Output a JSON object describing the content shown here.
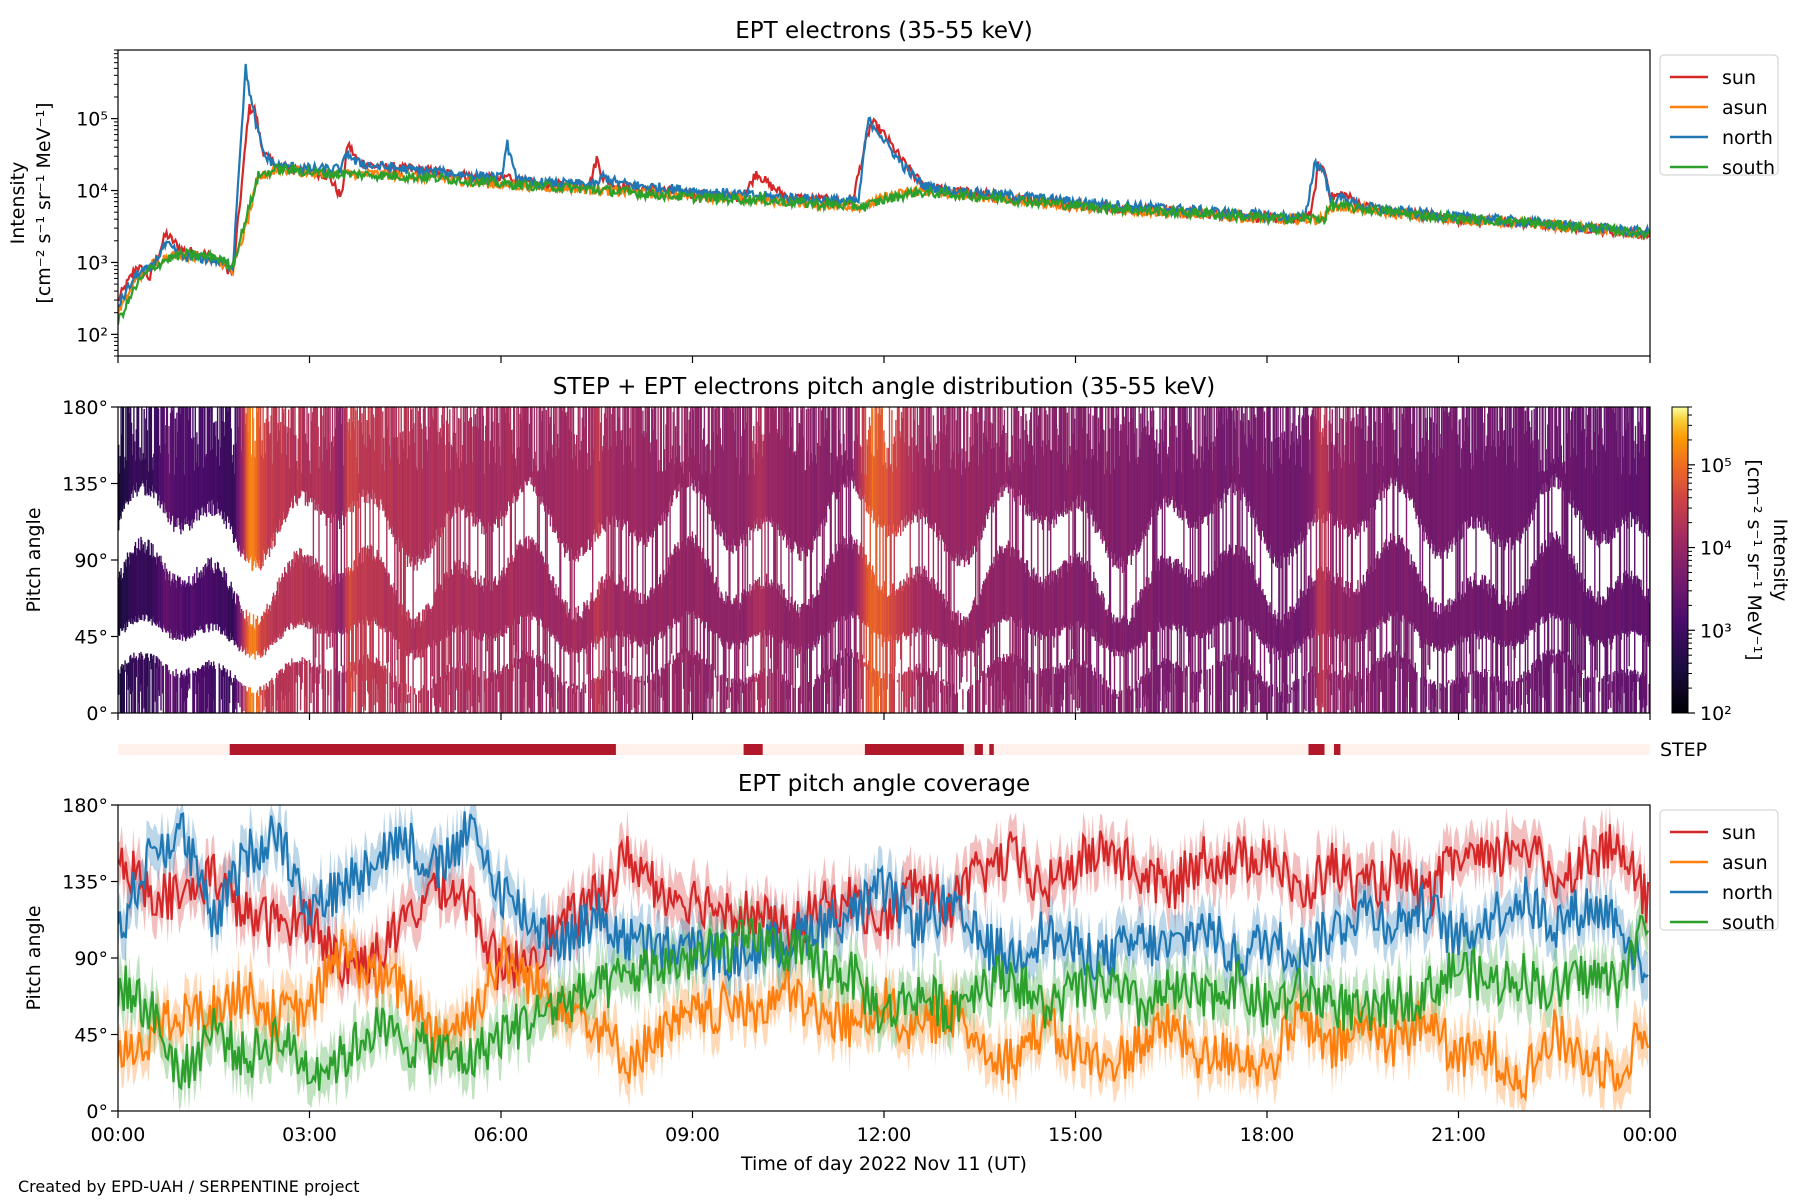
{
  "footer": "Created by EPD-UAH / SERPENTINE project",
  "chart_data": [
    {
      "type": "line",
      "title": "EPT electrons (35-55 keV)",
      "ylabel_line1": "Intensity",
      "ylabel_line2": "[cm⁻² s⁻¹ sr⁻¹ MeV⁻¹]",
      "yscale": "log",
      "ylim": [
        50,
        900000
      ],
      "yticks": [
        {
          "v": 100,
          "label": "10²"
        },
        {
          "v": 1000,
          "label": "10³"
        },
        {
          "v": 10000,
          "label": "10⁴"
        },
        {
          "v": 100000,
          "label": "10⁵"
        }
      ],
      "xlim": [
        0,
        24
      ],
      "legend_position": "right",
      "series": [
        {
          "name": "sun",
          "color": "#d62728",
          "x": [
            0,
            0.3,
            0.5,
            0.75,
            1.0,
            1.5,
            1.8,
            1.95,
            2.05,
            2.15,
            2.25,
            2.35,
            2.5,
            2.7,
            3.0,
            3.3,
            3.5,
            3.6,
            3.75,
            4.0,
            5.0,
            6.0,
            6.1,
            6.3,
            6.6,
            7.0,
            7.4,
            7.5,
            7.6,
            7.8,
            8.0,
            9.0,
            9.8,
            10.0,
            10.2,
            10.5,
            11.0,
            11.5,
            11.7,
            11.8,
            11.9,
            12.0,
            12.3,
            12.6,
            13.0,
            14.0,
            15.0,
            16.0,
            17.0,
            18.0,
            18.5,
            18.7,
            18.8,
            18.9,
            19.0,
            19.2,
            19.5,
            20.0,
            21.0,
            22.0,
            23.0,
            24.0
          ],
          "y": [
            300,
            900,
            600,
            2500,
            1500,
            1200,
            700,
            15000,
            140000,
            130000,
            40000,
            28000,
            22000,
            21000,
            19000,
            16000,
            8000,
            45000,
            26000,
            22000,
            18000,
            14000,
            16000,
            13000,
            12000,
            12000,
            13000,
            28000,
            15000,
            12000,
            11000,
            9000,
            8000,
            18000,
            12000,
            8000,
            7500,
            7000,
            40000,
            90000,
            75000,
            60000,
            25000,
            12000,
            10000,
            8000,
            6500,
            5500,
            4800,
            4200,
            3800,
            5000,
            22000,
            20000,
            8000,
            9000,
            6000,
            5000,
            4000,
            3500,
            3000,
            2400
          ]
        },
        {
          "name": "asun",
          "color": "#ff7f0e",
          "x": [
            0,
            0.3,
            0.5,
            0.75,
            1.0,
            1.5,
            1.8,
            2.0,
            2.2,
            2.5,
            2.8,
            3.0,
            3.5,
            4.0,
            5.0,
            6.0,
            7.0,
            8.0,
            9.0,
            10.0,
            11.0,
            11.7,
            12.0,
            12.5,
            13.0,
            14.0,
            15.0,
            16.0,
            17.0,
            18.0,
            18.9,
            19.0,
            19.5,
            20.0,
            21.0,
            22.0,
            23.0,
            24.0
          ],
          "y": [
            200,
            600,
            900,
            1200,
            1300,
            1100,
            800,
            3000,
            15000,
            20000,
            19000,
            18000,
            17000,
            17000,
            15000,
            12000,
            11000,
            9500,
            8500,
            7500,
            6500,
            6000,
            8000,
            10000,
            9000,
            7500,
            6000,
            5200,
            4700,
            4000,
            4000,
            6000,
            5500,
            4800,
            4000,
            3500,
            3000,
            2400
          ]
        },
        {
          "name": "north",
          "color": "#1f77b4",
          "x": [
            0,
            0.3,
            0.5,
            0.75,
            1.0,
            1.5,
            1.8,
            1.9,
            2.0,
            2.1,
            2.2,
            2.3,
            2.5,
            2.8,
            3.0,
            3.5,
            3.6,
            3.7,
            4.0,
            5.0,
            6.0,
            6.1,
            6.2,
            6.4,
            7.0,
            7.5,
            7.6,
            7.8,
            8.0,
            9.0,
            10.0,
            11.0,
            11.6,
            11.75,
            11.9,
            12.0,
            12.3,
            12.6,
            13.0,
            14.0,
            15.0,
            16.0,
            17.0,
            18.0,
            18.6,
            18.75,
            18.9,
            19.0,
            19.2,
            19.5,
            20.0,
            21.0,
            22.0,
            23.0,
            24.0
          ],
          "y": [
            250,
            700,
            800,
            1800,
            1200,
            1100,
            900,
            25000,
            500000,
            150000,
            60000,
            30000,
            22000,
            21000,
            20000,
            20000,
            35000,
            25000,
            22000,
            18000,
            15000,
            45000,
            18000,
            13000,
            12500,
            12000,
            16000,
            13000,
            12000,
            10000,
            8500,
            7500,
            7000,
            95000,
            70000,
            50000,
            22000,
            12000,
            10000,
            8500,
            7000,
            6000,
            5200,
            4500,
            4200,
            25000,
            18000,
            7000,
            8000,
            6000,
            5200,
            4300,
            3700,
            3100,
            2600
          ]
        },
        {
          "name": "south",
          "color": "#2ca02c",
          "x": [
            0,
            0.3,
            0.5,
            0.75,
            1.0,
            1.5,
            1.8,
            2.0,
            2.2,
            2.5,
            2.8,
            3.0,
            3.5,
            4.0,
            5.0,
            6.0,
            7.0,
            8.0,
            9.0,
            10.0,
            11.0,
            11.7,
            12.0,
            12.5,
            13.0,
            14.0,
            15.0,
            16.0,
            17.0,
            18.0,
            18.9,
            19.0,
            19.5,
            20.0,
            21.0,
            22.0,
            23.0,
            24.0
          ],
          "y": [
            150,
            500,
            800,
            1100,
            1300,
            1200,
            900,
            4000,
            16000,
            20000,
            19000,
            18000,
            17000,
            16500,
            15000,
            12500,
            11000,
            9500,
            8000,
            7500,
            6500,
            6000,
            7500,
            9500,
            9000,
            7500,
            6200,
            5300,
            4800,
            4100,
            4100,
            6200,
            5600,
            4900,
            4100,
            3600,
            3100,
            2500
          ]
        }
      ]
    },
    {
      "type": "heatmap",
      "title": "STEP + EPT electrons pitch angle distribution (35-55 keV)",
      "ylabel": "Pitch angle",
      "ylim": [
        0,
        180
      ],
      "yticks": [
        "0°",
        "45°",
        "90°",
        "135°",
        "180°"
      ],
      "xlim": [
        0,
        24
      ],
      "colormap": "inferno",
      "colorbar": {
        "label_line1": "Intensity",
        "label_line2": "[cm⁻² s⁻¹ sr⁻¹ MeV⁻¹]",
        "scale": "log",
        "range": [
          100,
          500000
        ],
        "ticks": [
          {
            "v": 100,
            "label": "10²"
          },
          {
            "v": 1000,
            "label": "10³"
          },
          {
            "v": 10000,
            "label": "10⁴"
          },
          {
            "v": 100000,
            "label": "10⁵"
          }
        ]
      }
    },
    {
      "type": "bar",
      "label": "STEP",
      "xlim": [
        0,
        24
      ],
      "background_color": "#fff1ec",
      "active_color": "#b2182b",
      "intervals": [
        [
          1.75,
          7.8
        ],
        [
          9.8,
          10.1
        ],
        [
          11.7,
          13.25
        ],
        [
          13.42,
          13.55
        ],
        [
          13.65,
          13.72
        ],
        [
          18.65,
          18.9
        ],
        [
          19.05,
          19.15
        ]
      ]
    },
    {
      "type": "line",
      "title": "EPT pitch angle coverage",
      "xlabel": "Time of day 2022 Nov 11 (UT)",
      "ylabel": "Pitch angle",
      "ylim": [
        0,
        180
      ],
      "yticks": [
        "0°",
        "45°",
        "90°",
        "135°",
        "180°"
      ],
      "xlim": [
        0,
        24
      ],
      "xticks": [
        "00:00",
        "03:00",
        "06:00",
        "09:00",
        "12:00",
        "15:00",
        "18:00",
        "21:00",
        "00:00"
      ],
      "legend_position": "right",
      "series": [
        {
          "name": "sun",
          "color": "#d62728",
          "x": [
            0,
            0.5,
            1,
            1.5,
            2,
            2.5,
            3,
            3.5,
            4,
            4.5,
            5,
            5.5,
            6,
            6.5,
            7,
            7.5,
            8,
            8.5,
            9,
            9.5,
            10,
            10.5,
            11,
            11.5,
            12,
            12.5,
            13,
            13.5,
            14,
            14.5,
            15,
            15.5,
            16,
            16.5,
            17,
            17.5,
            18,
            18.5,
            19,
            19.5,
            20,
            20.5,
            21,
            21.5,
            22,
            22.5,
            23,
            23.5,
            24
          ],
          "y": [
            150,
            130,
            125,
            140,
            115,
            110,
            115,
            85,
            90,
            110,
            135,
            125,
            80,
            95,
            110,
            125,
            150,
            130,
            125,
            120,
            115,
            105,
            120,
            125,
            110,
            135,
            120,
            140,
            150,
            130,
            145,
            155,
            140,
            130,
            150,
            145,
            155,
            125,
            145,
            130,
            140,
            125,
            150,
            145,
            160,
            135,
            150,
            155,
            120
          ]
        },
        {
          "name": "asun",
          "color": "#ff7f0e",
          "x": [
            0,
            0.5,
            1,
            1.5,
            2,
            2.5,
            3,
            3.5,
            4,
            4.5,
            5,
            5.5,
            6,
            6.5,
            7,
            7.5,
            8,
            8.5,
            9,
            9.5,
            10,
            10.5,
            11,
            11.5,
            12,
            12.5,
            13,
            13.5,
            14,
            14.5,
            15,
            15.5,
            16,
            16.5,
            17,
            17.5,
            18,
            18.5,
            19,
            19.5,
            20,
            20.5,
            21,
            21.5,
            22,
            22.5,
            23,
            23.5,
            24
          ],
          "y": [
            30,
            45,
            55,
            60,
            70,
            55,
            60,
            95,
            80,
            70,
            45,
            55,
            90,
            75,
            65,
            50,
            30,
            45,
            55,
            60,
            60,
            70,
            55,
            50,
            65,
            45,
            60,
            40,
            30,
            50,
            35,
            25,
            40,
            50,
            30,
            35,
            25,
            55,
            35,
            50,
            40,
            55,
            30,
            35,
            20,
            45,
            30,
            25,
            50
          ]
        },
        {
          "name": "north",
          "color": "#1f77b4",
          "x": [
            0,
            0.5,
            1,
            1.5,
            2,
            2.5,
            3,
            3.5,
            4,
            4.5,
            5,
            5.5,
            6,
            6.5,
            7,
            7.5,
            8,
            8.5,
            9,
            9.5,
            10,
            10.5,
            11,
            11.5,
            12,
            12.5,
            13,
            13.5,
            14,
            14.5,
            15,
            15.5,
            16,
            16.5,
            17,
            17.5,
            18,
            18.5,
            19,
            19.5,
            20,
            20.5,
            21,
            21.5,
            22,
            22.5,
            23,
            23.5,
            24
          ],
          "y": [
            105,
            150,
            165,
            110,
            150,
            165,
            120,
            130,
            150,
            160,
            140,
            165,
            130,
            110,
            100,
            115,
            100,
            95,
            95,
            90,
            95,
            100,
            110,
            115,
            130,
            110,
            120,
            100,
            90,
            105,
            95,
            90,
            100,
            95,
            110,
            90,
            100,
            95,
            105,
            120,
            110,
            120,
            100,
            115,
            125,
            110,
            120,
            115,
            70
          ]
        },
        {
          "name": "south",
          "color": "#2ca02c",
          "x": [
            0,
            0.5,
            1,
            1.5,
            2,
            2.5,
            3,
            3.5,
            4,
            4.5,
            5,
            5.5,
            6,
            6.5,
            7,
            7.5,
            8,
            8.5,
            9,
            9.5,
            10,
            10.5,
            11,
            11.5,
            12,
            12.5,
            13,
            13.5,
            14,
            14.5,
            15,
            15.5,
            16,
            16.5,
            17,
            17.5,
            18,
            18.5,
            19,
            19.5,
            20,
            20.5,
            21,
            21.5,
            22,
            22.5,
            23,
            23.5,
            24
          ],
          "y": [
            75,
            60,
            20,
            50,
            30,
            45,
            25,
            30,
            50,
            40,
            35,
            30,
            45,
            55,
            65,
            70,
            80,
            85,
            90,
            95,
            100,
            95,
            85,
            80,
            55,
            70,
            60,
            75,
            80,
            60,
            70,
            75,
            60,
            70,
            65,
            75,
            60,
            70,
            65,
            55,
            65,
            70,
            85,
            75,
            80,
            70,
            80,
            75,
            115
          ]
        }
      ]
    }
  ]
}
